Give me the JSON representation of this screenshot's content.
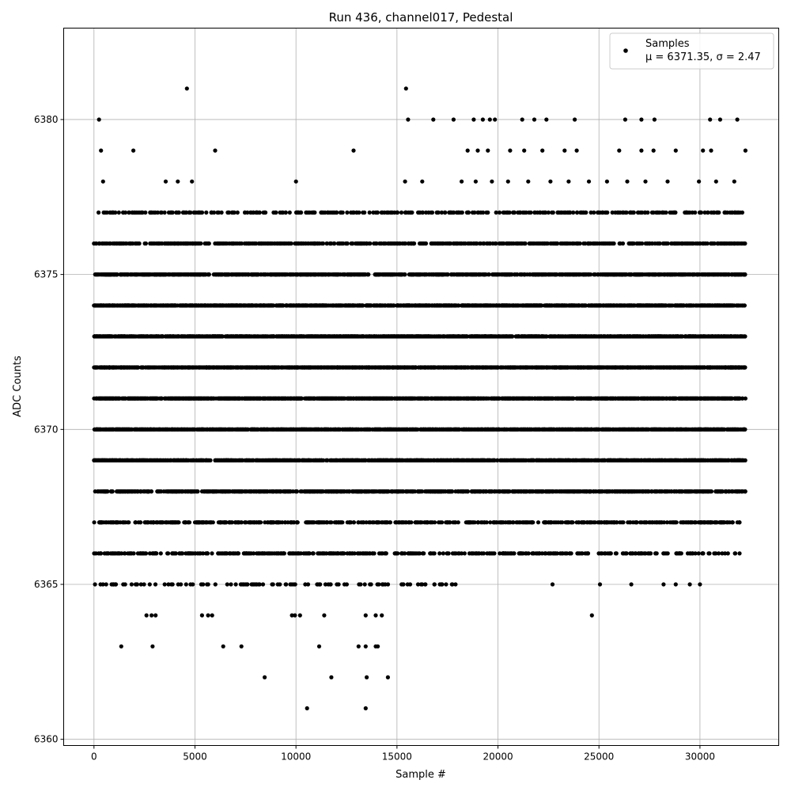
{
  "chart_data": {
    "type": "scatter",
    "title": "Run 436, channel017, Pedestal",
    "xlabel": "Sample #",
    "ylabel": "ADC Counts",
    "xlim": [
      -1500,
      33900
    ],
    "ylim": [
      6359.8,
      6382.95
    ],
    "xticks": [
      0,
      5000,
      10000,
      15000,
      20000,
      25000,
      30000
    ],
    "yticks": [
      6360,
      6365,
      6370,
      6375,
      6380
    ],
    "grid": true,
    "legend_position": "top-right",
    "marker_color": "#000000",
    "series": [
      {
        "name": "Samples",
        "legend_stats": "μ = 6371.35, σ = 2.47",
        "integer_levels": [
          6361,
          6362,
          6363,
          6364,
          6365,
          6366,
          6367,
          6368,
          6369,
          6370,
          6371,
          6372,
          6373,
          6374,
          6375,
          6376,
          6377,
          6378,
          6379,
          6380,
          6381
        ],
        "points": [
          [
            4600,
            6381
          ],
          [
            15450,
            6381
          ],
          [
            250,
            6380
          ],
          [
            15550,
            6380
          ],
          [
            16800,
            6380
          ],
          [
            17800,
            6380
          ],
          [
            18800,
            6380
          ],
          [
            19250,
            6380
          ],
          [
            19600,
            6380
          ],
          [
            19850,
            6380
          ],
          [
            21200,
            6380
          ],
          [
            21800,
            6380
          ],
          [
            22400,
            6380
          ],
          [
            23800,
            6380
          ],
          [
            26300,
            6380
          ],
          [
            27100,
            6380
          ],
          [
            27750,
            6380
          ],
          [
            30500,
            6380
          ],
          [
            31000,
            6380
          ],
          [
            31850,
            6380
          ],
          [
            350,
            6379
          ],
          [
            1950,
            6379
          ],
          [
            6000,
            6379
          ],
          [
            12850,
            6379
          ],
          [
            18500,
            6379
          ],
          [
            19000,
            6379
          ],
          [
            19500,
            6379
          ],
          [
            20600,
            6379
          ],
          [
            21300,
            6379
          ],
          [
            22200,
            6379
          ],
          [
            23300,
            6379
          ],
          [
            23900,
            6379
          ],
          [
            26000,
            6379
          ],
          [
            27100,
            6379
          ],
          [
            27700,
            6379
          ],
          [
            28800,
            6379
          ],
          [
            30150,
            6379
          ],
          [
            30550,
            6379
          ],
          [
            32250,
            6379
          ],
          [
            450,
            6378
          ],
          [
            3550,
            6378
          ],
          [
            4150,
            6378
          ],
          [
            4850,
            6378
          ],
          [
            10000,
            6378
          ],
          [
            15400,
            6378
          ],
          [
            16250,
            6378
          ],
          [
            18200,
            6378
          ],
          [
            18900,
            6378
          ],
          [
            19700,
            6378
          ],
          [
            20500,
            6378
          ],
          [
            21500,
            6378
          ],
          [
            22600,
            6378
          ],
          [
            23500,
            6378
          ],
          [
            24500,
            6378
          ],
          [
            25400,
            6378
          ],
          [
            26400,
            6378
          ],
          [
            27300,
            6378
          ],
          [
            28400,
            6378
          ],
          [
            29950,
            6378
          ],
          [
            30800,
            6378
          ],
          [
            31700,
            6378
          ],
          [
            10550,
            6361
          ],
          [
            13450,
            6361
          ],
          [
            8450,
            6362
          ],
          [
            11750,
            6362
          ],
          [
            13500,
            6362
          ],
          [
            14550,
            6362
          ],
          [
            1350,
            6363
          ],
          [
            2900,
            6363
          ],
          [
            6400,
            6363
          ],
          [
            7300,
            6363
          ],
          [
            11150,
            6363
          ],
          [
            13100,
            6363
          ],
          [
            13450,
            6363
          ],
          [
            13950,
            6363
          ],
          [
            14050,
            6363
          ],
          [
            2600,
            6364
          ],
          [
            2850,
            6364
          ],
          [
            3050,
            6364
          ],
          [
            5350,
            6364
          ],
          [
            5650,
            6364
          ],
          [
            5850,
            6364
          ],
          [
            9800,
            6364
          ],
          [
            9950,
            6364
          ],
          [
            10200,
            6364
          ],
          [
            11400,
            6364
          ],
          [
            13450,
            6364
          ],
          [
            13950,
            6364
          ],
          [
            14250,
            6364
          ],
          [
            24650,
            6364
          ],
          [
            50,
            6365
          ],
          [
            1050,
            6365
          ],
          [
            1450,
            6365
          ],
          [
            2100,
            6365
          ],
          [
            3500,
            6365
          ],
          [
            4300,
            6365
          ],
          [
            5400,
            6365
          ],
          [
            6600,
            6365
          ],
          [
            7400,
            6365
          ],
          [
            8200,
            6365
          ],
          [
            9100,
            6365
          ],
          [
            9900,
            6365
          ],
          [
            10600,
            6365
          ],
          [
            11600,
            6365
          ],
          [
            12400,
            6365
          ],
          [
            13200,
            6365
          ],
          [
            14100,
            6365
          ],
          [
            15300,
            6365
          ],
          [
            16400,
            6365
          ],
          [
            17200,
            6365
          ],
          [
            17900,
            6365
          ],
          [
            22700,
            6365
          ],
          [
            25050,
            6365
          ],
          [
            26600,
            6365
          ],
          [
            28200,
            6365
          ],
          [
            28800,
            6365
          ],
          [
            29500,
            6365
          ],
          [
            30000,
            6365
          ]
        ]
      }
    ]
  }
}
